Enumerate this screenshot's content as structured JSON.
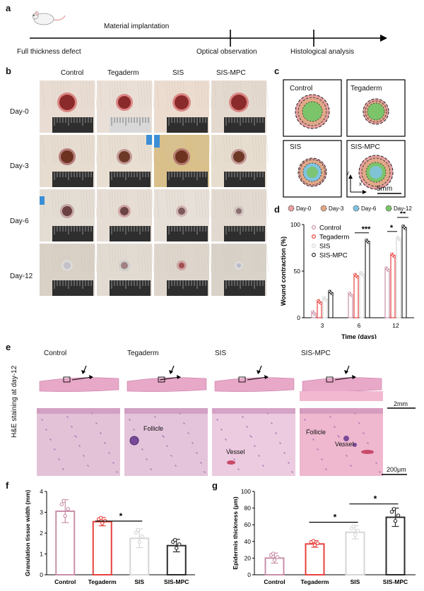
{
  "panels": {
    "a": "a",
    "b": "b",
    "c": "c",
    "d": "d",
    "e": "e",
    "f": "f",
    "g": "g"
  },
  "timeline": {
    "top_label": "Material implantation",
    "events": [
      "Full thickness defect",
      "Optical observation",
      "Histological analysis"
    ]
  },
  "groups": [
    "Control",
    "Tegaderm",
    "SIS",
    "SIS-MPC"
  ],
  "days": [
    "Day-0",
    "Day-3",
    "Day-6",
    "Day-12"
  ],
  "trace": {
    "legend": [
      "Day-0",
      "Day-3",
      "Day-6",
      "Day-12"
    ],
    "colors": {
      "day0": "#e8a0a0",
      "day3": "#e0a888",
      "day6": "#7fc4e0",
      "day12": "#7cc46a"
    },
    "axis_y": "y",
    "axis_x": "x",
    "scale": "5mm"
  },
  "he": {
    "side_label": "H&E staining at day-12",
    "scale_top": "2mm",
    "scale_bottom": "200μm",
    "annotations": {
      "follicle": "Follicle",
      "vessel": "Vessel"
    }
  },
  "colors": {
    "Control": "#c98fa8",
    "Tegaderm": "#e8413c",
    "SIS": "#d6d6d6",
    "SIS-MPC": "#2b2b2b"
  },
  "chart_data": [
    {
      "id": "d",
      "type": "bar",
      "ylabel": "Wound contraction (%)",
      "xlabel": "Time (days)",
      "categories": [
        "3",
        "6",
        "12"
      ],
      "ylim": [
        0,
        100
      ],
      "yticks": [
        0,
        50,
        100
      ],
      "series": [
        {
          "name": "Control",
          "values": [
            5,
            25,
            52
          ]
        },
        {
          "name": "Tegaderm",
          "values": [
            17,
            45,
            67
          ]
        },
        {
          "name": "SIS",
          "values": [
            20,
            47,
            85
          ]
        },
        {
          "name": "SIS-MPC",
          "values": [
            27,
            82,
            97
          ]
        }
      ],
      "significance": [
        {
          "category": "6",
          "text": "***"
        },
        {
          "category": "12",
          "text": "*"
        },
        {
          "category": "12",
          "text": "**"
        }
      ],
      "legend_position": "top-left"
    },
    {
      "id": "f",
      "type": "bar",
      "ylabel": "Granulation tissue width (mm)",
      "categories": [
        "Control",
        "Tegaderm",
        "SIS",
        "SIS-MPC"
      ],
      "values": [
        3.05,
        2.55,
        1.75,
        1.4
      ],
      "errors": [
        0.55,
        0.2,
        0.45,
        0.3
      ],
      "ylim": [
        0,
        4
      ],
      "yticks": [
        0,
        1,
        2,
        3,
        4
      ],
      "significance": [
        {
          "text": "*",
          "from": "Tegaderm",
          "to": "SIS"
        }
      ]
    },
    {
      "id": "g",
      "type": "bar",
      "ylabel": "Epidermis thickness (μm)",
      "categories": [
        "Control",
        "Tegaderm",
        "SIS",
        "SIS-MPC"
      ],
      "values": [
        20,
        37,
        51,
        69
      ],
      "errors": [
        6,
        4,
        8,
        11
      ],
      "ylim": [
        0,
        100
      ],
      "yticks": [
        0,
        20,
        40,
        60,
        80,
        100
      ],
      "significance": [
        {
          "text": "*",
          "from": "Tegaderm",
          "to": "SIS"
        },
        {
          "text": "*",
          "from": "SIS",
          "to": "SIS-MPC"
        }
      ]
    }
  ]
}
